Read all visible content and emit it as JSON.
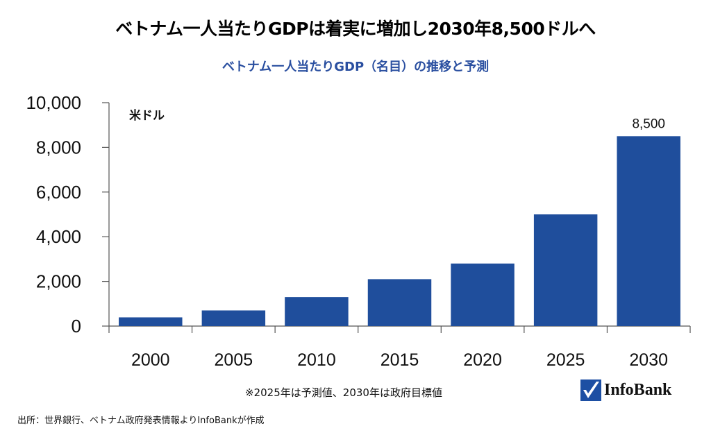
{
  "header": {
    "title": "ベトナム一人当たりGDPは着実に増加し2030年8,500ドルへ",
    "subtitle": "ベトナム一人当たりGDP（名目）の推移と予測"
  },
  "chart_data": {
    "type": "bar",
    "title": "ベトナム一人当たりGDP（名目）の推移と予測",
    "xlabel": "",
    "ylabel": "米ドル",
    "unit_label": "米ドル",
    "categories": [
      "2000",
      "2005",
      "2010",
      "2015",
      "2020",
      "2025",
      "2030"
    ],
    "values": [
      390,
      700,
      1300,
      2100,
      2800,
      5000,
      8500
    ],
    "ylim": [
      0,
      10000
    ],
    "yticks": [
      0,
      2000,
      4000,
      6000,
      8000,
      10000
    ],
    "ytick_labels": [
      "0",
      "2,000",
      "4,000",
      "6,000",
      "8,000",
      "10,000"
    ],
    "data_labels": [
      {
        "category": "2030",
        "label": "8,500"
      }
    ],
    "grid": false,
    "legend": "none",
    "bar_color": "#1f4e9c"
  },
  "footer": {
    "note": "※2025年は予測値、2030年は政府目標値",
    "source": "出所：世界銀行、ベトナム政府発表情報よりInfoBankが作成",
    "logo_text": "InfoBank"
  },
  "colors": {
    "subtitle": "#2a4fa0",
    "bar": "#1f4e9c",
    "logo": "#1d4fa3"
  }
}
